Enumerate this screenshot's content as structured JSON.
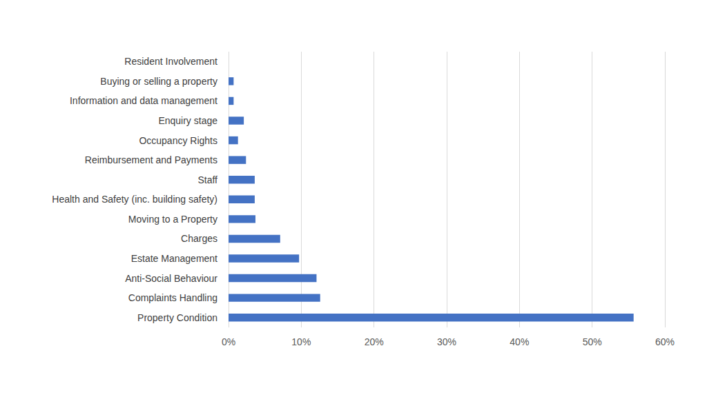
{
  "chart_data": {
    "type": "bar",
    "orientation": "horizontal",
    "categories": [
      "Resident Involvement",
      "Buying or selling a property",
      "Information and data management",
      "Enquiry stage",
      "Occupancy Rights",
      "Reimbursement and Payments",
      "Staff",
      "Health and Safety (inc. building safety)",
      "Moving to a Property",
      "Charges",
      "Estate Management",
      "Anti-Social Behaviour",
      "Complaints Handling",
      "Property Condition"
    ],
    "values": [
      0,
      0.7,
      0.7,
      2.1,
      1.3,
      2.4,
      3.6,
      3.6,
      3.7,
      7.1,
      9.7,
      12.1,
      12.6,
      55.7
    ],
    "color": "#4472c4",
    "xlim": [
      0,
      60
    ],
    "xticks": [
      {
        "value": 0,
        "label": "0%"
      },
      {
        "value": 10,
        "label": "10%"
      },
      {
        "value": 20,
        "label": "20%"
      },
      {
        "value": 30,
        "label": "30%"
      },
      {
        "value": 40,
        "label": "40%"
      },
      {
        "value": 50,
        "label": "50%"
      },
      {
        "value": 60,
        "label": "60%"
      }
    ],
    "grid": true
  }
}
